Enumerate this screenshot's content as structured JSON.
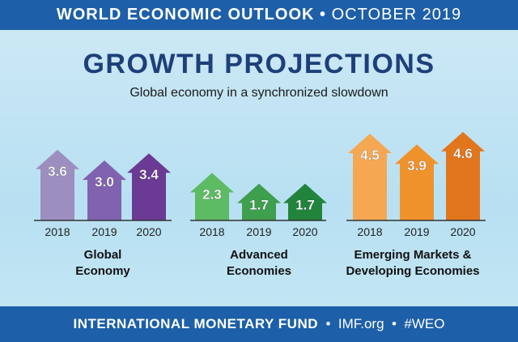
{
  "header": {
    "left": "WORLD ECONOMIC OUTLOOK",
    "sep": "•",
    "right": "OCTOBER 2019"
  },
  "title": "GROWTH PROJECTIONS",
  "subtitle": "Global economy in a synchronized slowdown",
  "footer": {
    "org": "INTERNATIONAL MONETARY FUND",
    "site": "IMF.org",
    "tag": "#WEO",
    "sep": "•"
  },
  "chart_data": {
    "type": "bar",
    "style": "arrows",
    "categories": [
      "2018",
      "2019",
      "2020"
    ],
    "groups": [
      {
        "name": "Global Economy",
        "line1": "Global",
        "line2": "Economy",
        "values": [
          3.6,
          3.0,
          3.4
        ],
        "colors": [
          "#9c8fbf",
          "#8162b0",
          "#6a3a94"
        ]
      },
      {
        "name": "Advanced Economies",
        "line1": "Advanced",
        "line2": "Economies",
        "values": [
          2.3,
          1.7,
          1.7
        ],
        "colors": [
          "#5dbb63",
          "#3e9f4f",
          "#22843c"
        ]
      },
      {
        "name": "Emerging Markets & Developing Economies",
        "line1": "Emerging Markets &",
        "line2": "Developing Economies",
        "values": [
          4.5,
          3.9,
          4.6
        ],
        "colors": [
          "#f5a752",
          "#f0922b",
          "#e2761c"
        ]
      }
    ]
  }
}
